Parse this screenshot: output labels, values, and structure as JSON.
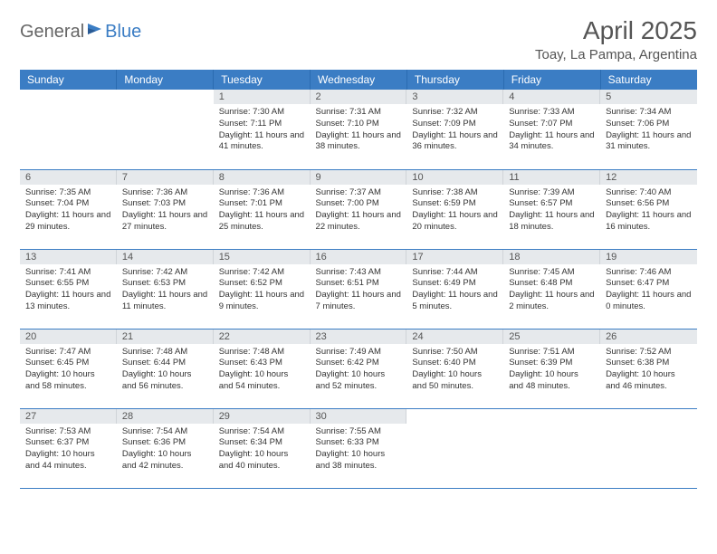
{
  "logo": {
    "text1": "General",
    "text2": "Blue"
  },
  "title": "April 2025",
  "location": "Toay, La Pampa, Argentina",
  "colors": {
    "header_bg": "#3b7dc4",
    "header_text": "#ffffff",
    "daynum_bg": "#e6e9ec",
    "row_border": "#3b7dc4",
    "body_text": "#333333",
    "title_text": "#555555"
  },
  "table": {
    "type": "calendar",
    "columns": [
      "Sunday",
      "Monday",
      "Tuesday",
      "Wednesday",
      "Thursday",
      "Friday",
      "Saturday"
    ],
    "weeks": [
      [
        {
          "day": "",
          "sunrise": "",
          "sunset": "",
          "daylight": ""
        },
        {
          "day": "",
          "sunrise": "",
          "sunset": "",
          "daylight": ""
        },
        {
          "day": "1",
          "sunrise": "Sunrise: 7:30 AM",
          "sunset": "Sunset: 7:11 PM",
          "daylight": "Daylight: 11 hours and 41 minutes."
        },
        {
          "day": "2",
          "sunrise": "Sunrise: 7:31 AM",
          "sunset": "Sunset: 7:10 PM",
          "daylight": "Daylight: 11 hours and 38 minutes."
        },
        {
          "day": "3",
          "sunrise": "Sunrise: 7:32 AM",
          "sunset": "Sunset: 7:09 PM",
          "daylight": "Daylight: 11 hours and 36 minutes."
        },
        {
          "day": "4",
          "sunrise": "Sunrise: 7:33 AM",
          "sunset": "Sunset: 7:07 PM",
          "daylight": "Daylight: 11 hours and 34 minutes."
        },
        {
          "day": "5",
          "sunrise": "Sunrise: 7:34 AM",
          "sunset": "Sunset: 7:06 PM",
          "daylight": "Daylight: 11 hours and 31 minutes."
        }
      ],
      [
        {
          "day": "6",
          "sunrise": "Sunrise: 7:35 AM",
          "sunset": "Sunset: 7:04 PM",
          "daylight": "Daylight: 11 hours and 29 minutes."
        },
        {
          "day": "7",
          "sunrise": "Sunrise: 7:36 AM",
          "sunset": "Sunset: 7:03 PM",
          "daylight": "Daylight: 11 hours and 27 minutes."
        },
        {
          "day": "8",
          "sunrise": "Sunrise: 7:36 AM",
          "sunset": "Sunset: 7:01 PM",
          "daylight": "Daylight: 11 hours and 25 minutes."
        },
        {
          "day": "9",
          "sunrise": "Sunrise: 7:37 AM",
          "sunset": "Sunset: 7:00 PM",
          "daylight": "Daylight: 11 hours and 22 minutes."
        },
        {
          "day": "10",
          "sunrise": "Sunrise: 7:38 AM",
          "sunset": "Sunset: 6:59 PM",
          "daylight": "Daylight: 11 hours and 20 minutes."
        },
        {
          "day": "11",
          "sunrise": "Sunrise: 7:39 AM",
          "sunset": "Sunset: 6:57 PM",
          "daylight": "Daylight: 11 hours and 18 minutes."
        },
        {
          "day": "12",
          "sunrise": "Sunrise: 7:40 AM",
          "sunset": "Sunset: 6:56 PM",
          "daylight": "Daylight: 11 hours and 16 minutes."
        }
      ],
      [
        {
          "day": "13",
          "sunrise": "Sunrise: 7:41 AM",
          "sunset": "Sunset: 6:55 PM",
          "daylight": "Daylight: 11 hours and 13 minutes."
        },
        {
          "day": "14",
          "sunrise": "Sunrise: 7:42 AM",
          "sunset": "Sunset: 6:53 PM",
          "daylight": "Daylight: 11 hours and 11 minutes."
        },
        {
          "day": "15",
          "sunrise": "Sunrise: 7:42 AM",
          "sunset": "Sunset: 6:52 PM",
          "daylight": "Daylight: 11 hours and 9 minutes."
        },
        {
          "day": "16",
          "sunrise": "Sunrise: 7:43 AM",
          "sunset": "Sunset: 6:51 PM",
          "daylight": "Daylight: 11 hours and 7 minutes."
        },
        {
          "day": "17",
          "sunrise": "Sunrise: 7:44 AM",
          "sunset": "Sunset: 6:49 PM",
          "daylight": "Daylight: 11 hours and 5 minutes."
        },
        {
          "day": "18",
          "sunrise": "Sunrise: 7:45 AM",
          "sunset": "Sunset: 6:48 PM",
          "daylight": "Daylight: 11 hours and 2 minutes."
        },
        {
          "day": "19",
          "sunrise": "Sunrise: 7:46 AM",
          "sunset": "Sunset: 6:47 PM",
          "daylight": "Daylight: 11 hours and 0 minutes."
        }
      ],
      [
        {
          "day": "20",
          "sunrise": "Sunrise: 7:47 AM",
          "sunset": "Sunset: 6:45 PM",
          "daylight": "Daylight: 10 hours and 58 minutes."
        },
        {
          "day": "21",
          "sunrise": "Sunrise: 7:48 AM",
          "sunset": "Sunset: 6:44 PM",
          "daylight": "Daylight: 10 hours and 56 minutes."
        },
        {
          "day": "22",
          "sunrise": "Sunrise: 7:48 AM",
          "sunset": "Sunset: 6:43 PM",
          "daylight": "Daylight: 10 hours and 54 minutes."
        },
        {
          "day": "23",
          "sunrise": "Sunrise: 7:49 AM",
          "sunset": "Sunset: 6:42 PM",
          "daylight": "Daylight: 10 hours and 52 minutes."
        },
        {
          "day": "24",
          "sunrise": "Sunrise: 7:50 AM",
          "sunset": "Sunset: 6:40 PM",
          "daylight": "Daylight: 10 hours and 50 minutes."
        },
        {
          "day": "25",
          "sunrise": "Sunrise: 7:51 AM",
          "sunset": "Sunset: 6:39 PM",
          "daylight": "Daylight: 10 hours and 48 minutes."
        },
        {
          "day": "26",
          "sunrise": "Sunrise: 7:52 AM",
          "sunset": "Sunset: 6:38 PM",
          "daylight": "Daylight: 10 hours and 46 minutes."
        }
      ],
      [
        {
          "day": "27",
          "sunrise": "Sunrise: 7:53 AM",
          "sunset": "Sunset: 6:37 PM",
          "daylight": "Daylight: 10 hours and 44 minutes."
        },
        {
          "day": "28",
          "sunrise": "Sunrise: 7:54 AM",
          "sunset": "Sunset: 6:36 PM",
          "daylight": "Daylight: 10 hours and 42 minutes."
        },
        {
          "day": "29",
          "sunrise": "Sunrise: 7:54 AM",
          "sunset": "Sunset: 6:34 PM",
          "daylight": "Daylight: 10 hours and 40 minutes."
        },
        {
          "day": "30",
          "sunrise": "Sunrise: 7:55 AM",
          "sunset": "Sunset: 6:33 PM",
          "daylight": "Daylight: 10 hours and 38 minutes."
        },
        {
          "day": "",
          "sunrise": "",
          "sunset": "",
          "daylight": ""
        },
        {
          "day": "",
          "sunrise": "",
          "sunset": "",
          "daylight": ""
        },
        {
          "day": "",
          "sunrise": "",
          "sunset": "",
          "daylight": ""
        }
      ]
    ]
  }
}
